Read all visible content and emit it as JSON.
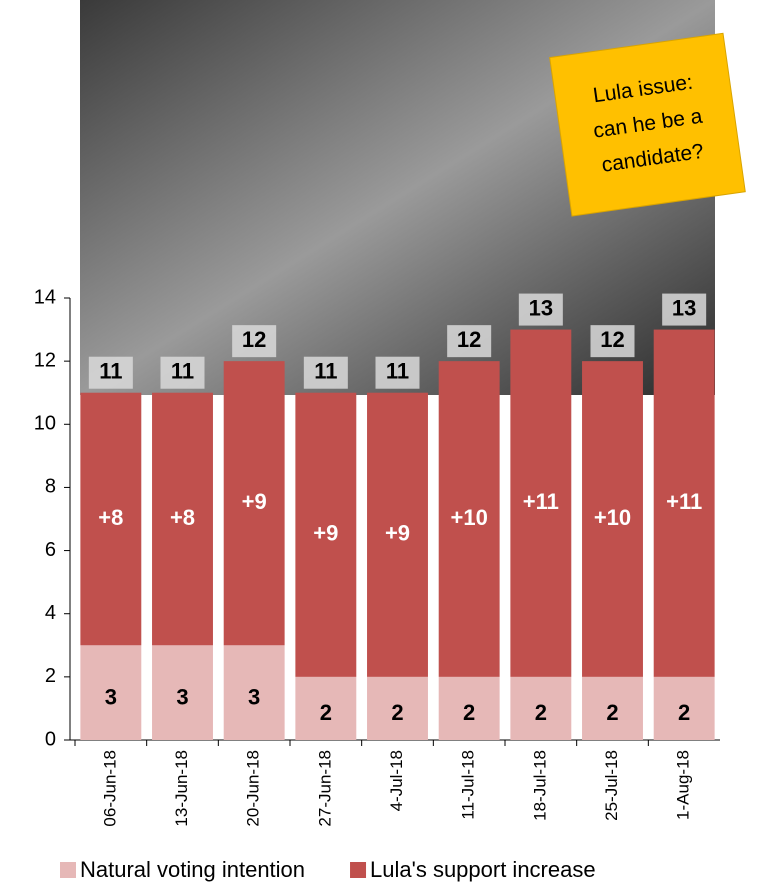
{
  "chart_data": {
    "type": "stacked_bar",
    "annotation": [
      "Lula issue:",
      "can he be a",
      "candidate?"
    ],
    "categories": [
      "06-Jun-18",
      "13-Jun-18",
      "20-Jun-18",
      "27-Jun-18",
      "4-Jul-18",
      "11-Jul-18",
      "18-Jul-18",
      "25-Jul-18",
      "1-Aug-18"
    ],
    "series": [
      {
        "name": "Natural voting intention",
        "color": "#e6b8b7",
        "values": [
          3,
          3,
          3,
          2,
          2,
          2,
          2,
          2,
          2
        ]
      },
      {
        "name": "Lula's support increase",
        "color": "#c0504d",
        "values": [
          8,
          8,
          9,
          9,
          9,
          10,
          11,
          10,
          11
        ],
        "value_labels": [
          "+8",
          "+8",
          "+9",
          "+9",
          "+9",
          "+10",
          "+11",
          "+10",
          "+11"
        ]
      }
    ],
    "totals": [
      11,
      11,
      12,
      11,
      11,
      12,
      13,
      12,
      13
    ],
    "ylim": [
      0,
      14
    ],
    "yticks": [
      0,
      2,
      4,
      6,
      8,
      10,
      12,
      14
    ],
    "legend": "bottom"
  }
}
